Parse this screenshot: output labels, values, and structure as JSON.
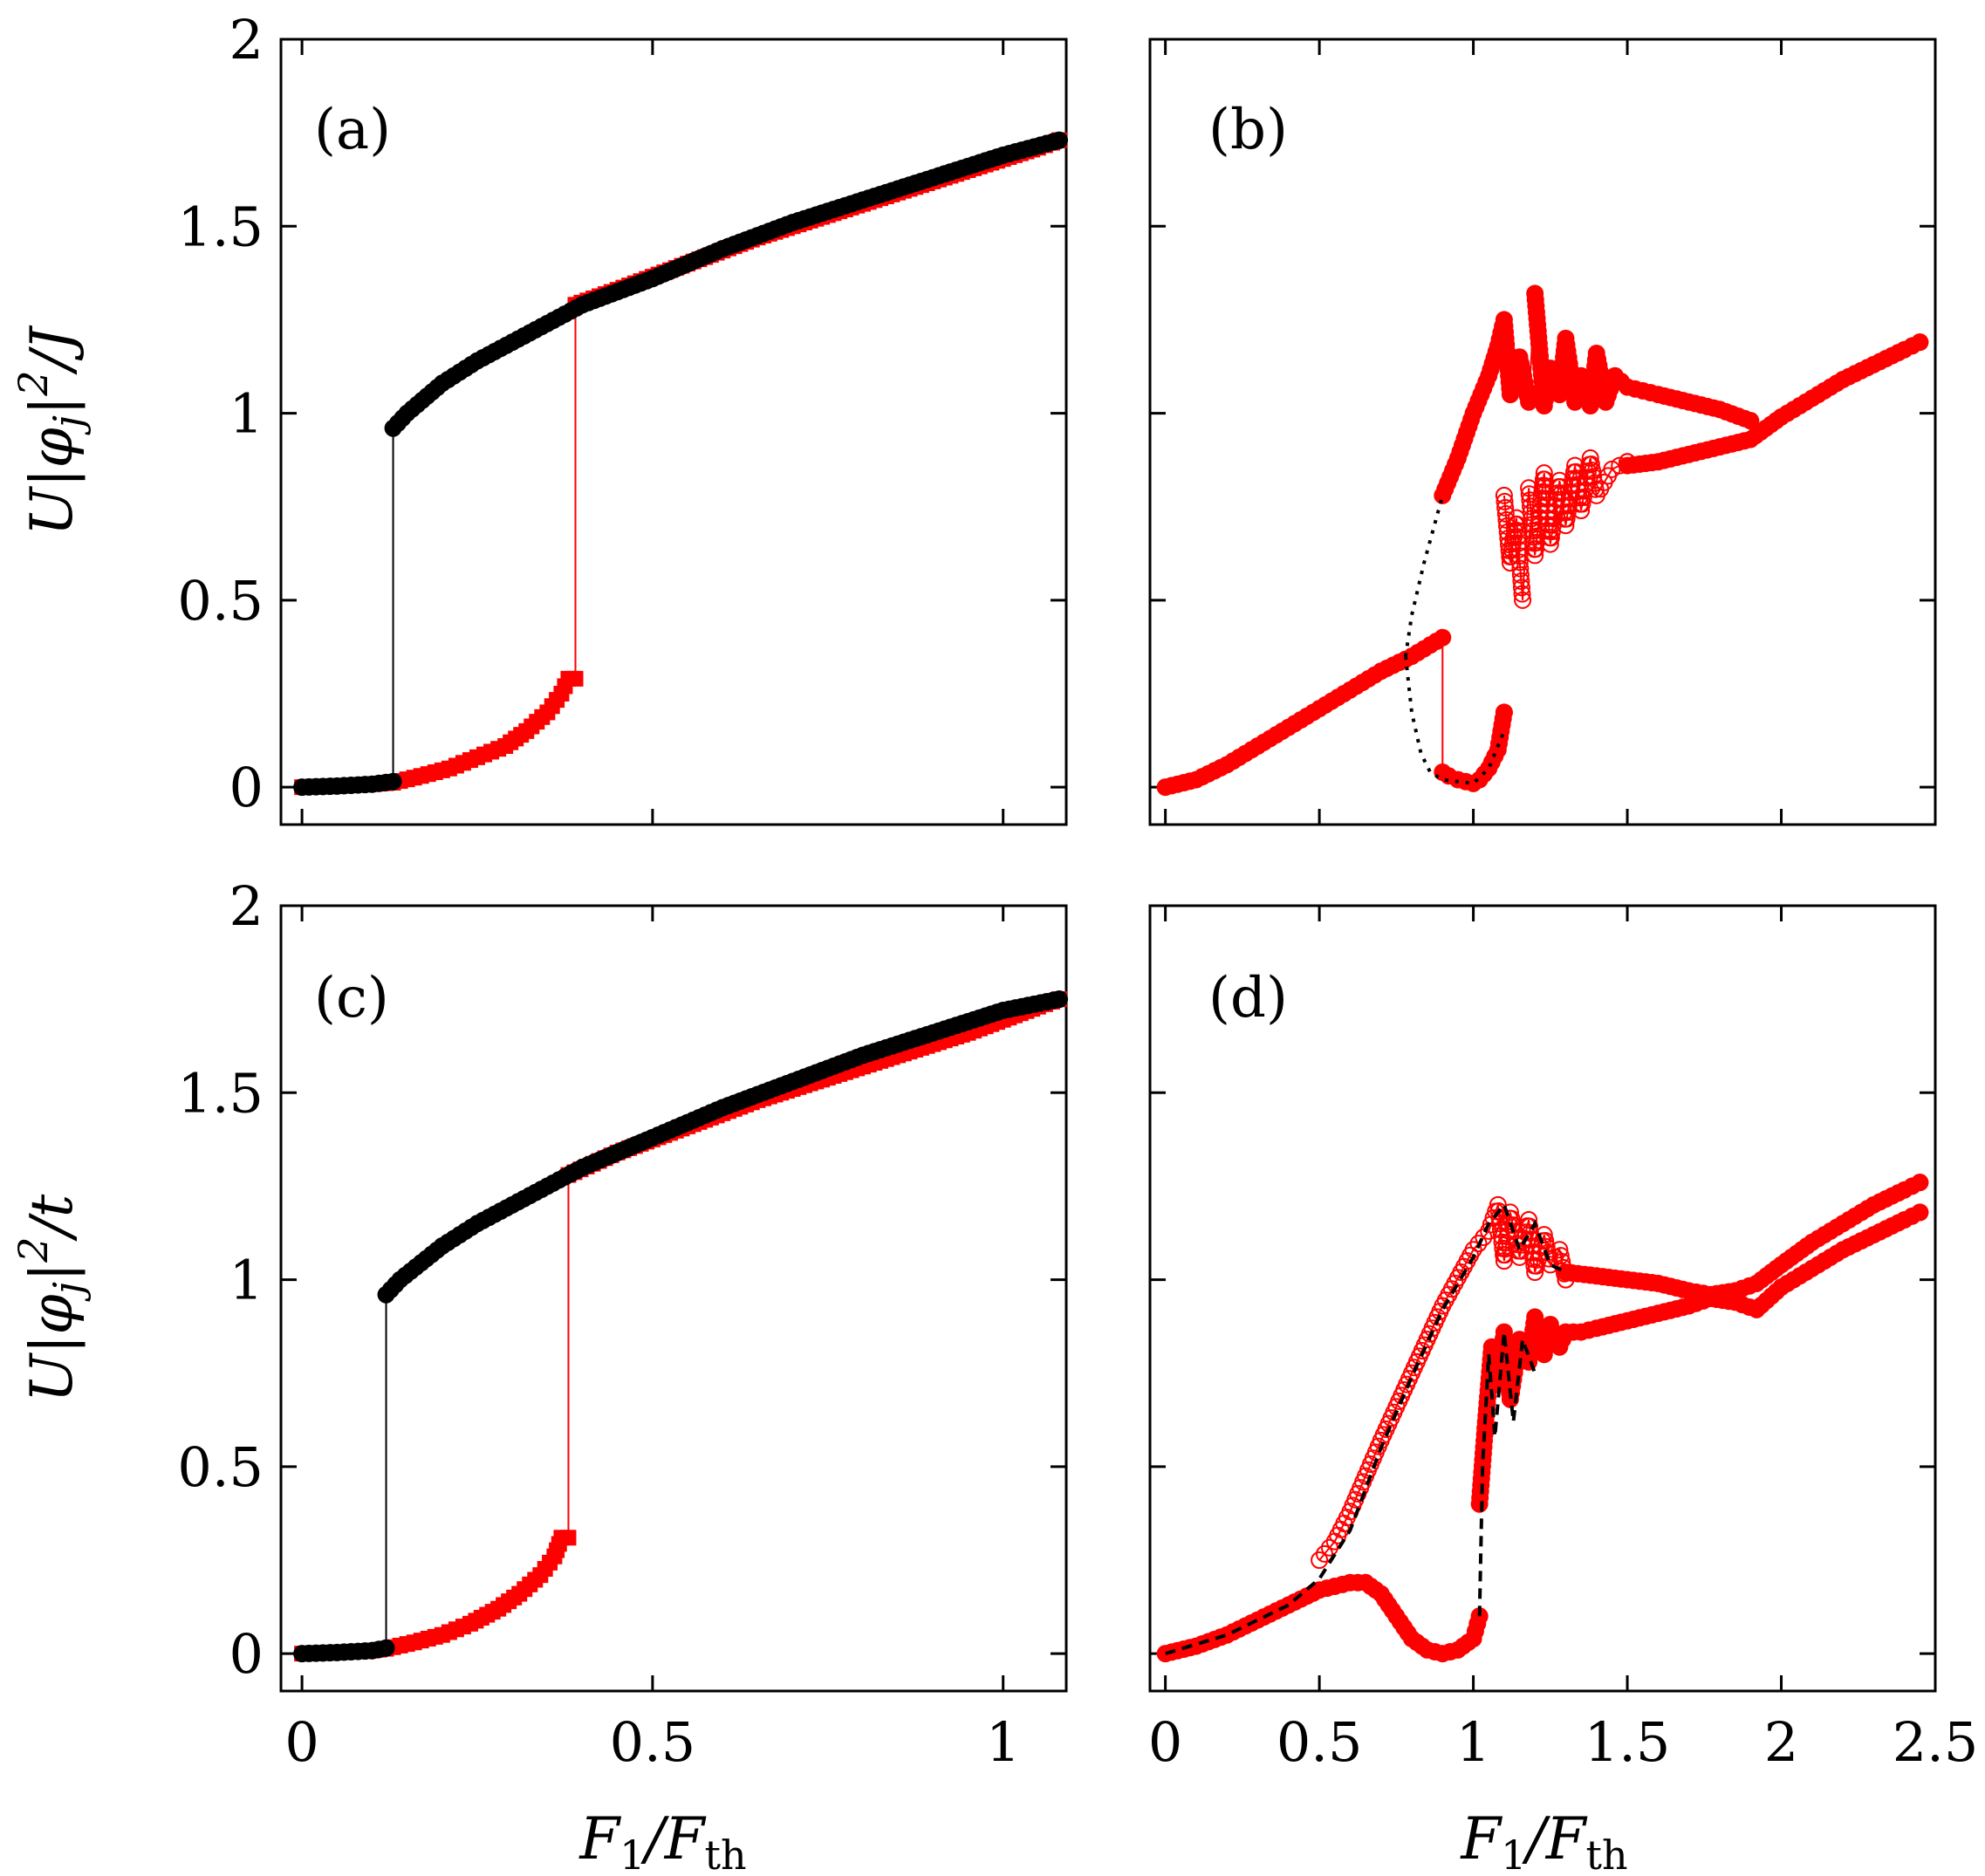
{
  "colors": {
    "red": "#ff0000",
    "black": "#000000",
    "frame": "#000000",
    "background": "#ffffff"
  },
  "axis_text": {
    "ylabel_top": {
      "pre": "U|",
      "phi": "φ",
      "sub": "j",
      "post": "|",
      "sup": "2",
      "tail": "/J"
    },
    "ylabel_bottom": {
      "pre": "U|",
      "phi": "φ",
      "sub": "j",
      "post": "|",
      "sup": "2",
      "tail": "/t"
    },
    "xlabel": {
      "f": "F",
      "f_sub": "1",
      "slash": "/",
      "g": "F",
      "g_sub": "th"
    }
  },
  "chart_data": [
    {
      "panel": "(a)",
      "type": "line",
      "xlim": [
        -0.03,
        1.09
      ],
      "ylim": [
        -0.1,
        2.0
      ],
      "xticks": [
        "0",
        "0.5",
        "1"
      ],
      "yticks": [
        "0",
        "0.5",
        "1",
        "1.5",
        "2"
      ],
      "grid": false,
      "series": [
        {
          "color": "#ff0000",
          "marker": "filled-square",
          "line": "solid",
          "x": [
            0,
            0.05,
            0.1,
            0.13,
            0.17,
            0.21,
            0.25,
            0.29,
            0.32,
            0.35,
            0.37,
            0.38,
            0.39,
            0.39,
            0.45,
            0.55,
            0.65,
            0.75,
            0.85,
            0.95,
            1.05,
            1.08
          ],
          "y": [
            0,
            0.003,
            0.008,
            0.012,
            0.03,
            0.05,
            0.08,
            0.11,
            0.15,
            0.2,
            0.25,
            0.29,
            0.29,
            1.29,
            1.33,
            1.4,
            1.47,
            1.53,
            1.59,
            1.65,
            1.71,
            1.73
          ]
        },
        {
          "color": "#000000",
          "marker": "filled-circle",
          "line": "solid",
          "x": [
            0,
            0.05,
            0.1,
            0.13,
            0.13,
            0.15,
            0.2,
            0.25,
            0.3,
            0.35,
            0.4,
            0.5,
            0.6,
            0.7,
            0.8,
            0.9,
            1.0,
            1.08
          ],
          "y": [
            0,
            0.003,
            0.008,
            0.015,
            0.96,
            1.0,
            1.08,
            1.14,
            1.19,
            1.24,
            1.29,
            1.36,
            1.44,
            1.51,
            1.57,
            1.63,
            1.69,
            1.73
          ]
        }
      ]
    },
    {
      "panel": "(b)",
      "type": "line",
      "xlim": [
        -0.05,
        2.5
      ],
      "ylim": [
        -0.1,
        2.0
      ],
      "xticks": [
        "0",
        "0.5",
        "1",
        "1.5",
        "2",
        "2.5"
      ],
      "yticks": [],
      "grid": false,
      "series": [
        {
          "color": "#ff0000",
          "marker": "filled-circle",
          "line": "solid",
          "x": [
            0,
            0.1,
            0.2,
            0.3,
            0.4,
            0.5,
            0.6,
            0.7,
            0.8,
            0.9,
            0.9,
            0.92,
            0.95,
            1.0,
            1.02,
            1.05,
            1.08,
            1.1
          ],
          "y": [
            0,
            0.02,
            0.06,
            0.11,
            0.16,
            0.21,
            0.26,
            0.31,
            0.35,
            0.4,
            0.04,
            0.03,
            0.02,
            0.01,
            0.02,
            0.05,
            0.1,
            0.2
          ]
        },
        {
          "color": "#ff0000",
          "marker": "filled-circle",
          "line": "solid",
          "x": [
            0.9,
            0.95,
            1.0,
            1.05,
            1.08,
            1.1,
            1.12,
            1.15,
            1.18,
            1.2,
            1.23,
            1.25,
            1.28,
            1.3,
            1.33,
            1.35,
            1.38,
            1.4,
            1.43,
            1.46,
            1.5,
            1.55,
            1.6,
            1.7,
            1.8,
            1.9
          ],
          "y": [
            0.78,
            0.88,
            1.0,
            1.1,
            1.18,
            1.25,
            1.05,
            1.15,
            1.03,
            1.32,
            1.02,
            1.12,
            1.05,
            1.2,
            1.03,
            1.1,
            1.02,
            1.16,
            1.03,
            1.1,
            1.07,
            1.06,
            1.05,
            1.03,
            1.01,
            0.98
          ]
        },
        {
          "color": "#ff0000",
          "marker": "open-circle",
          "line": "solid",
          "x": [
            1.1,
            1.12,
            1.14,
            1.16,
            1.18,
            1.2,
            1.23,
            1.25,
            1.28,
            1.3,
            1.33,
            1.35,
            1.38,
            1.4,
            1.45,
            1.5
          ],
          "y": [
            0.78,
            0.6,
            0.72,
            0.5,
            0.8,
            0.62,
            0.84,
            0.65,
            0.82,
            0.7,
            0.86,
            0.74,
            0.88,
            0.78,
            0.85,
            0.87
          ]
        },
        {
          "color": "#ff0000",
          "marker": "filled-circle",
          "line": "solid",
          "x": [
            1.5,
            1.6,
            1.7,
            1.8,
            1.9,
            1.95,
            2.0,
            2.1,
            2.2,
            2.3,
            2.4,
            2.45
          ],
          "y": [
            0.86,
            0.87,
            0.89,
            0.91,
            0.93,
            0.96,
            0.99,
            1.04,
            1.09,
            1.13,
            1.17,
            1.19
          ]
        },
        {
          "color": "#000000",
          "marker": "none",
          "line": "dotted",
          "x": [
            0.78,
            0.8,
            0.83,
            0.86,
            0.9,
            1.0,
            1.05,
            1.1
          ],
          "y": [
            0.35,
            0.2,
            0.09,
            0.04,
            0.02,
            0.01,
            0.05,
            0.15
          ]
        },
        {
          "color": "#000000",
          "marker": "none",
          "line": "dotted",
          "x": [
            0.78,
            0.8,
            0.84,
            0.88,
            0.9
          ],
          "y": [
            0.35,
            0.46,
            0.6,
            0.72,
            0.78
          ]
        }
      ]
    },
    {
      "panel": "(c)",
      "type": "line",
      "xlim": [
        -0.03,
        1.09
      ],
      "ylim": [
        -0.1,
        2.0
      ],
      "xticks": [
        "0",
        "0.5",
        "1"
      ],
      "yticks": [
        "0",
        "0.5",
        "1",
        "1.5",
        "2"
      ],
      "grid": false,
      "series": [
        {
          "color": "#ff0000",
          "marker": "filled-square",
          "line": "solid",
          "x": [
            0,
            0.05,
            0.1,
            0.12,
            0.16,
            0.2,
            0.24,
            0.28,
            0.31,
            0.34,
            0.36,
            0.37,
            0.38,
            0.38,
            0.45,
            0.55,
            0.65,
            0.75,
            0.85,
            0.95,
            1.05,
            1.08
          ],
          "y": [
            0,
            0.003,
            0.008,
            0.013,
            0.03,
            0.05,
            0.08,
            0.12,
            0.16,
            0.21,
            0.26,
            0.31,
            0.31,
            1.28,
            1.34,
            1.41,
            1.48,
            1.54,
            1.6,
            1.66,
            1.73,
            1.75
          ]
        },
        {
          "color": "#000000",
          "marker": "filled-circle",
          "line": "solid",
          "x": [
            0,
            0.05,
            0.1,
            0.12,
            0.12,
            0.14,
            0.2,
            0.25,
            0.3,
            0.35,
            0.4,
            0.5,
            0.6,
            0.7,
            0.8,
            0.9,
            1.0,
            1.08
          ],
          "y": [
            0,
            0.003,
            0.008,
            0.015,
            0.96,
            1.0,
            1.09,
            1.15,
            1.2,
            1.25,
            1.3,
            1.38,
            1.46,
            1.53,
            1.6,
            1.66,
            1.72,
            1.75
          ]
        }
      ]
    },
    {
      "panel": "(d)",
      "type": "line",
      "xlim": [
        -0.05,
        2.5
      ],
      "ylim": [
        -0.1,
        2.0
      ],
      "xticks": [
        "0",
        "0.5",
        "1",
        "1.5",
        "2",
        "2.5"
      ],
      "yticks": [],
      "grid": false,
      "series": [
        {
          "color": "#ff0000",
          "marker": "filled-circle",
          "line": "solid",
          "x": [
            0,
            0.1,
            0.2,
            0.3,
            0.4,
            0.5,
            0.55,
            0.6,
            0.65,
            0.7,
            0.75,
            0.8,
            0.85,
            0.9,
            0.95,
            1.0,
            1.02
          ],
          "y": [
            0,
            0.02,
            0.05,
            0.09,
            0.13,
            0.17,
            0.18,
            0.19,
            0.19,
            0.16,
            0.1,
            0.04,
            0.01,
            0.0,
            0.01,
            0.04,
            0.1
          ]
        },
        {
          "color": "#ff0000",
          "marker": "open-circle",
          "line": "solid",
          "x": [
            0.5,
            0.55,
            0.6,
            0.7,
            0.8,
            0.9,
            1.0,
            1.05,
            1.08,
            1.1,
            1.12,
            1.15,
            1.18,
            1.2,
            1.23,
            1.25,
            1.28,
            1.3
          ],
          "y": [
            0.25,
            0.3,
            0.38,
            0.57,
            0.75,
            0.93,
            1.08,
            1.13,
            1.2,
            1.05,
            1.18,
            1.06,
            1.16,
            1.02,
            1.12,
            1.04,
            1.08,
            1.0
          ]
        },
        {
          "color": "#ff0000",
          "marker": "filled-circle",
          "line": "solid",
          "x": [
            1.3,
            1.4,
            1.5,
            1.6,
            1.7,
            1.77,
            1.85,
            1.92,
            2.0,
            2.1,
            2.2,
            2.3,
            2.4,
            2.45
          ],
          "y": [
            1.02,
            1.01,
            1.0,
            0.99,
            0.97,
            0.96,
            0.97,
            0.99,
            1.04,
            1.1,
            1.15,
            1.2,
            1.24,
            1.26
          ]
        },
        {
          "color": "#ff0000",
          "marker": "filled-circle",
          "line": "solid",
          "x": [
            1.02,
            1.04,
            1.06,
            1.08,
            1.1,
            1.12,
            1.15,
            1.18,
            1.2,
            1.23,
            1.25,
            1.28,
            1.3,
            1.35,
            1.4,
            1.5,
            1.6,
            1.7,
            1.77,
            1.85,
            1.92,
            2.0,
            2.1,
            2.2,
            2.3,
            2.4,
            2.45
          ],
          "y": [
            0.4,
            0.62,
            0.82,
            0.72,
            0.86,
            0.68,
            0.84,
            0.78,
            0.9,
            0.8,
            0.88,
            0.82,
            0.86,
            0.86,
            0.87,
            0.89,
            0.91,
            0.93,
            0.95,
            0.94,
            0.92,
            0.98,
            1.03,
            1.08,
            1.12,
            1.16,
            1.18
          ]
        },
        {
          "color": "#000000",
          "marker": "none",
          "line": "dashed",
          "x": [
            0,
            0.2,
            0.4,
            0.5,
            0.6,
            0.7,
            0.8,
            0.9,
            1.0,
            1.05,
            1.1,
            1.15,
            1.2,
            1.25,
            1.3
          ],
          "y": [
            0,
            0.05,
            0.13,
            0.2,
            0.33,
            0.55,
            0.74,
            0.92,
            1.06,
            1.15,
            1.2,
            1.08,
            1.15,
            1.04,
            1.02
          ]
        },
        {
          "color": "#000000",
          "marker": "none",
          "line": "dashed",
          "x": [
            1.02,
            1.03,
            1.05,
            1.07,
            1.1,
            1.13,
            1.16,
            1.2
          ],
          "y": [
            0.1,
            0.5,
            0.8,
            0.58,
            0.86,
            0.62,
            0.84,
            0.75
          ]
        }
      ]
    }
  ]
}
